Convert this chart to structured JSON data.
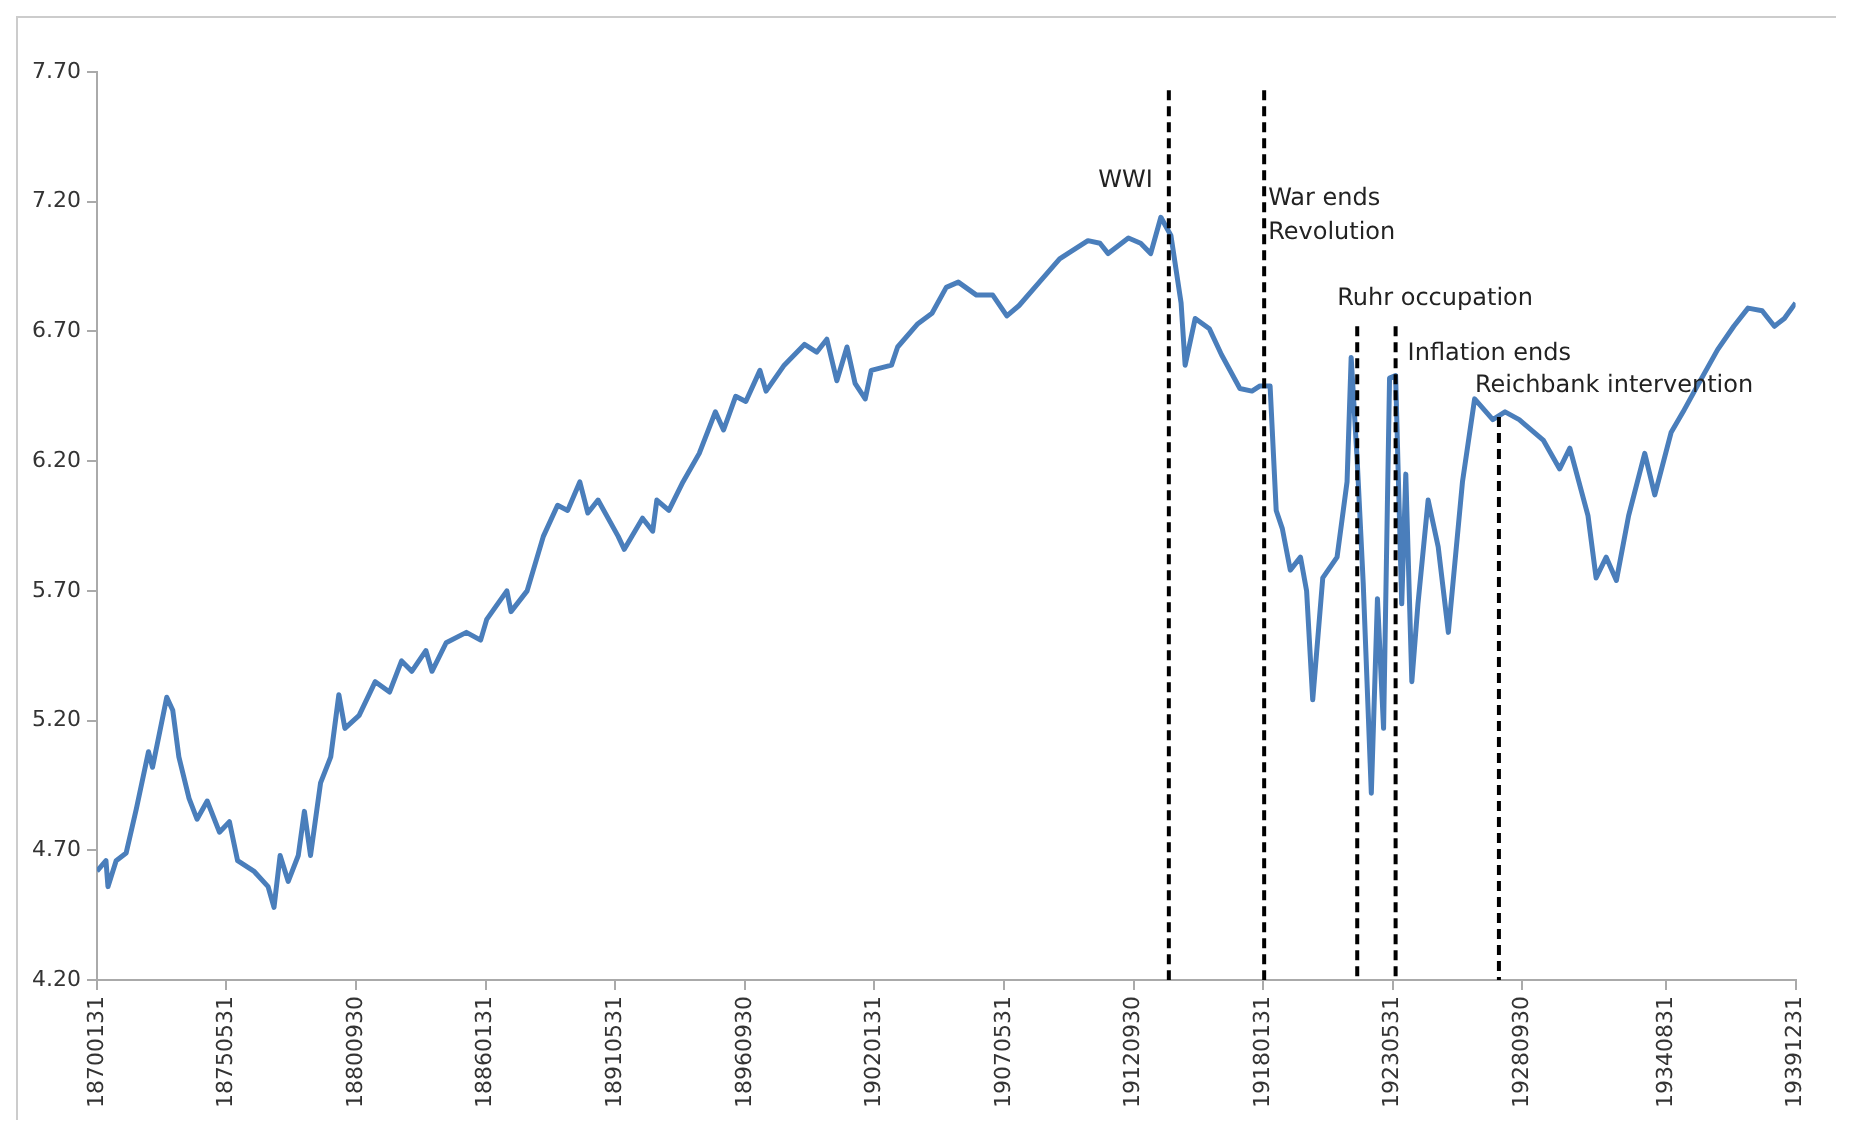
{
  "chart_data": {
    "type": "line",
    "series": [
      {
        "color": "#4a7ebb",
        "x": [
          "1870-01-31",
          "1870-06",
          "1870-07",
          "1870-11",
          "1871-04",
          "1871-09",
          "1872-03",
          "1872-05",
          "1872-12",
          "1873-03",
          "1873-06",
          "1873-11",
          "1874-03",
          "1874-08",
          "1875-02",
          "1875-07",
          "1875-11",
          "1876-07",
          "1877-02",
          "1877-05",
          "1877-08",
          "1877-12",
          "1878-05",
          "1878-08",
          "1878-11",
          "1879-04",
          "1879-09",
          "1880-01",
          "1880-04",
          "1880-11",
          "1881-07",
          "1882-02",
          "1882-08",
          "1883-01",
          "1883-08",
          "1883-11",
          "1884-06",
          "1885-04",
          "1885-11",
          "1886-02",
          "1886-12",
          "1887-02",
          "1887-10",
          "1888-06",
          "1889-01",
          "1889-06",
          "1889-12",
          "1890-04",
          "1890-09",
          "1891-07",
          "1891-10",
          "1892-07",
          "1892-12",
          "1893-02",
          "1893-08",
          "1894-03",
          "1894-11",
          "1895-07",
          "1895-11",
          "1896-05",
          "1896-10",
          "1897-05",
          "1897-08",
          "1898-05",
          "1899-03",
          "1899-09",
          "1900-02",
          "1900-07",
          "1900-12",
          "1901-04",
          "1901-09",
          "1901-12",
          "1902-10",
          "1903-01",
          "1903-11",
          "1904-06",
          "1905-01",
          "1905-07",
          "1906-04",
          "1906-12",
          "1907-07",
          "1908-01",
          "1908-11",
          "1909-09",
          "1910-11",
          "1911-05",
          "1911-09",
          "1912-07",
          "1913-01",
          "1913-06",
          "1913-11",
          "1914-04",
          "1914-09",
          "1914-11",
          "1915-04",
          "1915-11",
          "1916-05",
          "1917-02",
          "1917-08",
          "1917-12",
          "1918-05",
          "1918-08",
          "1918-11",
          "1919-03",
          "1919-08",
          "1919-11",
          "1920-02",
          "1920-07",
          "1921-02",
          "1921-07",
          "1921-09",
          "1921-12",
          "1922-03",
          "1922-07",
          "1922-10",
          "1923-01",
          "1923-04",
          "1923-07",
          "1923-10",
          "1923-12",
          "1924-03",
          "1924-06",
          "1924-11",
          "1925-04",
          "1925-09",
          "1926-04",
          "1926-10",
          "1927-07",
          "1928-01",
          "1928-08",
          "1929-08",
          "1930-04",
          "1930-09",
          "1931-06",
          "1931-10",
          "1932-03",
          "1932-08",
          "1933-02",
          "1933-10",
          "1934-03",
          "1934-11",
          "1935-05",
          "1935-12",
          "1936-10",
          "1937-06",
          "1938-01",
          "1938-08",
          "1939-02",
          "1939-07",
          "1939-12-31"
        ],
        "values": [
          4.62,
          4.66,
          4.56,
          4.66,
          4.69,
          4.86,
          5.08,
          5.02,
          5.29,
          5.24,
          5.06,
          4.9,
          4.82,
          4.89,
          4.77,
          4.81,
          4.66,
          4.62,
          4.56,
          4.48,
          4.68,
          4.58,
          4.68,
          4.85,
          4.68,
          4.96,
          5.06,
          5.3,
          5.17,
          5.22,
          5.35,
          5.31,
          5.43,
          5.39,
          5.47,
          5.39,
          5.5,
          5.54,
          5.51,
          5.59,
          5.7,
          5.62,
          5.7,
          5.91,
          6.03,
          6.01,
          6.12,
          6.0,
          6.05,
          5.91,
          5.86,
          5.98,
          5.93,
          6.05,
          6.01,
          6.12,
          6.23,
          6.39,
          6.32,
          6.45,
          6.43,
          6.55,
          6.47,
          6.57,
          6.65,
          6.62,
          6.67,
          6.51,
          6.64,
          6.5,
          6.44,
          6.55,
          6.57,
          6.64,
          6.73,
          6.77,
          6.87,
          6.89,
          6.84,
          6.84,
          6.76,
          6.8,
          6.89,
          6.98,
          7.05,
          7.04,
          7.0,
          7.06,
          7.04,
          7.0,
          7.14,
          7.07,
          6.81,
          6.57,
          6.75,
          6.71,
          6.61,
          6.48,
          6.47,
          6.49,
          6.49,
          6.01,
          5.94,
          5.78,
          5.83,
          5.7,
          5.28,
          5.75,
          5.83,
          6.12,
          6.6,
          6.2,
          5.73,
          4.92,
          5.67,
          5.17,
          6.52,
          6.53,
          5.65,
          6.15,
          5.35,
          5.65,
          6.05,
          5.87,
          5.54,
          6.12,
          6.44,
          6.36,
          6.39,
          6.36,
          6.28,
          6.17,
          6.25,
          5.99,
          5.75,
          5.83,
          5.74,
          5.99,
          6.23,
          6.07,
          6.31,
          6.39,
          6.49,
          6.63,
          6.72,
          6.79,
          6.78,
          6.72,
          6.75,
          6.81
        ]
      }
    ],
    "xlim": [
      "1870-01-31",
      "1939-12-31"
    ],
    "xticks": [
      {
        "value": "1870-01-31",
        "label": "18700131"
      },
      {
        "value": "1875-05-31",
        "label": "18750531"
      },
      {
        "value": "1880-09-30",
        "label": "18800930"
      },
      {
        "value": "1886-01-31",
        "label": "18860131"
      },
      {
        "value": "1891-05-31",
        "label": "18910531"
      },
      {
        "value": "1896-09-30",
        "label": "18960930"
      },
      {
        "value": "1902-01-31",
        "label": "19020131"
      },
      {
        "value": "1907-05-31",
        "label": "19070531"
      },
      {
        "value": "1912-09-30",
        "label": "19120930"
      },
      {
        "value": "1918-01-31",
        "label": "19180131"
      },
      {
        "value": "1923-05-31",
        "label": "19230531"
      },
      {
        "value": "1928-09-30",
        "label": "19280930"
      },
      {
        "value": "1934-08-31",
        "label": "19340831"
      },
      {
        "value": "1939-12-31",
        "label": "19391231"
      }
    ],
    "ylim": [
      4.2,
      7.7
    ],
    "yticks": [
      {
        "value": 4.2,
        "label": "4.20"
      },
      {
        "value": 4.7,
        "label": "4.70"
      },
      {
        "value": 5.2,
        "label": "5.20"
      },
      {
        "value": 5.7,
        "label": "5.70"
      },
      {
        "value": 6.2,
        "label": "6.20"
      },
      {
        "value": 6.7,
        "label": "6.70"
      },
      {
        "value": 7.2,
        "label": "7.20"
      },
      {
        "value": 7.7,
        "label": "7.70"
      }
    ],
    "ref_lines": [
      {
        "axis": "x",
        "value": "1914-03",
        "label": "WWI",
        "color": "#000000",
        "line_style": "dashed"
      },
      {
        "axis": "x",
        "value": "1918-02",
        "label": "War ends\nRevolution",
        "color": "#000000",
        "line_style": "dashed"
      },
      {
        "axis": "x",
        "value": "1921-12",
        "label": "Ruhr occupation",
        "color": "#000000",
        "line_style": "dashed"
      },
      {
        "axis": "x",
        "value": "1923-07",
        "label": "Inflation ends",
        "color": "#000000",
        "line_style": "dashed"
      },
      {
        "axis": "x",
        "value": "1927-10",
        "label": "Reichbank intervention",
        "color": "#000000",
        "line_style": "dashed"
      }
    ],
    "grid": false,
    "legend": false,
    "marker": "none",
    "line_style": "solid"
  }
}
